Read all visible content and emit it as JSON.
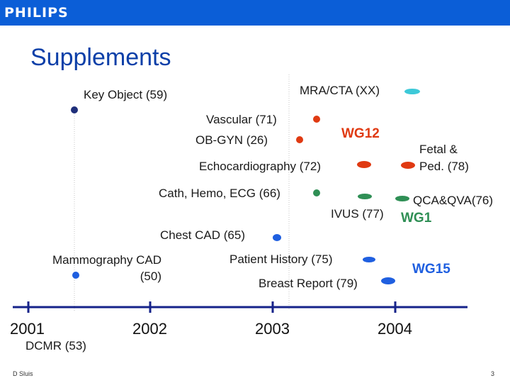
{
  "header": {
    "logo": "PHILIPS"
  },
  "title": "Supplements",
  "colors": {
    "navy": "#1f2f7a",
    "red": "#e03a12",
    "teal": "#3dc9d8",
    "green": "#2f8f55",
    "blue": "#1f5fe0",
    "brand": "#0b5ed7"
  },
  "supplements": [
    {
      "label": "Key Object (59)"
    },
    {
      "label": "MRA/CTA (XX)"
    },
    {
      "label": "Vascular (71)"
    },
    {
      "label": "OB-GYN (26)"
    },
    {
      "label": "Echocardiography (72)"
    },
    {
      "label": "Fetal & Ped. (78)"
    },
    {
      "label": "Cath, Hemo, ECG (66)"
    },
    {
      "label": "QCA&QVA(76)"
    },
    {
      "label": "IVUS (77)"
    },
    {
      "label": "Chest CAD (65)"
    },
    {
      "label": "Mammography CAD (50)"
    },
    {
      "label": "Patient History (75)"
    },
    {
      "label": "Breast Report (79)"
    },
    {
      "label": "DCMR (53)"
    }
  ],
  "working_groups": {
    "wg12": "WG12",
    "wg1": "WG1",
    "wg15": "WG15"
  },
  "timeline": {
    "years": [
      "2001",
      "2002",
      "2003",
      "2004"
    ]
  },
  "footer": {
    "author": "D Sluis",
    "page_number": "3"
  }
}
